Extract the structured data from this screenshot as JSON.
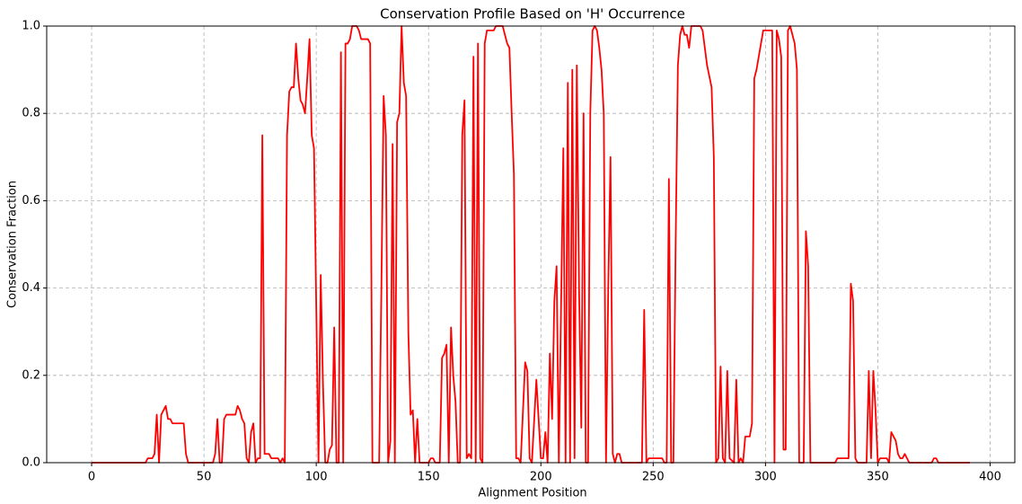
{
  "chart_data": {
    "type": "line",
    "title": "Conservation Profile Based on 'H' Occurrence",
    "x_label": "Alignment Position",
    "y_label": "Conservation Fraction",
    "xlim": [
      -20,
      411
    ],
    "ylim": [
      0,
      1
    ],
    "xticks": [
      0,
      50,
      100,
      150,
      200,
      250,
      300,
      350,
      400
    ],
    "yticks": [
      {
        "value": 0,
        "label": "0.0"
      },
      {
        "value": 0.2,
        "label": "0.2"
      },
      {
        "value": 0.4,
        "label": "0.4"
      },
      {
        "value": 0.6,
        "label": "0.6"
      },
      {
        "value": 0.8,
        "label": "0.8"
      },
      {
        "value": 1,
        "label": "1.0"
      }
    ],
    "grid": true,
    "color": "#ff0000",
    "x": [
      0,
      24,
      25,
      27,
      28,
      29,
      30,
      31,
      33,
      34,
      35,
      36,
      41,
      42,
      43,
      54,
      55,
      56,
      57,
      58,
      59,
      60,
      64,
      65,
      66,
      67,
      68,
      69,
      70,
      71,
      72,
      73,
      74,
      75,
      76,
      77,
      79,
      80,
      83,
      84,
      85,
      86,
      87,
      88,
      89,
      90,
      91,
      92,
      93,
      94,
      95,
      96,
      97,
      98,
      99,
      100,
      101,
      102,
      103,
      104,
      105,
      106,
      107,
      108,
      109,
      110,
      111,
      112,
      113,
      114,
      115,
      116,
      118,
      119,
      120,
      123,
      124,
      125,
      128,
      129,
      130,
      131,
      132,
      133,
      134,
      135,
      136,
      137,
      138,
      139,
      140,
      141,
      142,
      143,
      144,
      145,
      146,
      150,
      151,
      152,
      153,
      155,
      156,
      157,
      158,
      159,
      160,
      161,
      162,
      163,
      164,
      165,
      166,
      167,
      168,
      169,
      170,
      171,
      172,
      173,
      174,
      175,
      176,
      179,
      180,
      183,
      184,
      185,
      186,
      187,
      188,
      189,
      190,
      191,
      193,
      194,
      195,
      196,
      198,
      199,
      200,
      201,
      202,
      203,
      204,
      205,
      206,
      207,
      208,
      210,
      211,
      212,
      213,
      214,
      215,
      216,
      217,
      218,
      219,
      220,
      221,
      222,
      223,
      224,
      225,
      226,
      227,
      228,
      229,
      230,
      231,
      232,
      233,
      234,
      235,
      236,
      245,
      246,
      247,
      248,
      254,
      255,
      256,
      257,
      258,
      259,
      260,
      261,
      262,
      263,
      264,
      265,
      266,
      267,
      271,
      272,
      274,
      276,
      277,
      278,
      279,
      280,
      281,
      282,
      283,
      284,
      286,
      287,
      288,
      289,
      290,
      291,
      293,
      294,
      295,
      296,
      298,
      299,
      303,
      304,
      305,
      306,
      307,
      308,
      309,
      310,
      311,
      312,
      313,
      314,
      315,
      317,
      318,
      319,
      320,
      331,
      332,
      337,
      338,
      339,
      340,
      341,
      345,
      346,
      347,
      348,
      349,
      350,
      351,
      354,
      355,
      356,
      357,
      358,
      359,
      360,
      361,
      362,
      363,
      364,
      374,
      375,
      376,
      377,
      391
    ],
    "values": [
      0,
      0,
      0.01,
      0.01,
      0.02,
      0.11,
      0,
      0.11,
      0.13,
      0.1,
      0.1,
      0.09,
      0.09,
      0.02,
      0,
      0,
      0.02,
      0.1,
      0,
      0,
      0.1,
      0.11,
      0.11,
      0.13,
      0.12,
      0.1,
      0.09,
      0.01,
      0,
      0.07,
      0.09,
      0,
      0.01,
      0.01,
      0.75,
      0.02,
      0.02,
      0.01,
      0.01,
      0,
      0.01,
      0,
      0.75,
      0.85,
      0.86,
      0.86,
      0.96,
      0.88,
      0.83,
      0.82,
      0.8,
      0.88,
      0.97,
      0.75,
      0.72,
      0.36,
      0,
      0.43,
      0.18,
      0,
      0,
      0.03,
      0.04,
      0.31,
      0,
      0,
      0.94,
      0,
      0.96,
      0.96,
      0.97,
      1,
      1,
      0.99,
      0.97,
      0.97,
      0.96,
      0,
      0,
      0.4,
      0.84,
      0.75,
      0,
      0.05,
      0.73,
      0,
      0.78,
      0.8,
      1,
      0.87,
      0.84,
      0.3,
      0.11,
      0.12,
      0,
      0.1,
      0,
      0,
      0.01,
      0.01,
      0,
      0,
      0.24,
      0.25,
      0.27,
      0,
      0.31,
      0.2,
      0.14,
      0,
      0,
      0.75,
      0.83,
      0.01,
      0.02,
      0.01,
      0.93,
      0,
      0.96,
      0.01,
      0,
      0.96,
      0.99,
      0.99,
      1,
      1,
      0.98,
      0.96,
      0.95,
      0.8,
      0.66,
      0.01,
      0.01,
      0,
      0.23,
      0.21,
      0.01,
      0,
      0.19,
      0.1,
      0.01,
      0.01,
      0.07,
      0,
      0.25,
      0.1,
      0.37,
      0.45,
      0,
      0.72,
      0,
      0.87,
      0,
      0.9,
      0.01,
      0.91,
      0.4,
      0.08,
      0.8,
      0,
      0,
      0.8,
      0.99,
      1,
      0.99,
      0.95,
      0.9,
      0.8,
      0,
      0.4,
      0.7,
      0.02,
      0,
      0.02,
      0.02,
      0,
      0,
      0.35,
      0,
      0.01,
      0.01,
      0,
      0,
      0.65,
      0,
      0,
      0.5,
      0.91,
      0.98,
      1,
      0.98,
      0.98,
      0.95,
      1,
      1,
      0.99,
      0.91,
      0.86,
      0.7,
      0,
      0.01,
      0.22,
      0.01,
      0,
      0.21,
      0.01,
      0,
      0.19,
      0,
      0.01,
      0,
      0.06,
      0.06,
      0.09,
      0.88,
      0.9,
      0.96,
      0.99,
      0.99,
      0,
      0.99,
      0.97,
      0.93,
      0.03,
      0.03,
      0.99,
      1,
      0.98,
      0.96,
      0.9,
      0,
      0,
      0.53,
      0.45,
      0,
      0,
      0.01,
      0.01,
      0.41,
      0.37,
      0.01,
      0,
      0,
      0.21,
      0.01,
      0.21,
      0.12,
      0,
      0.01,
      0.01,
      0,
      0.07,
      0.06,
      0.05,
      0.02,
      0.01,
      0.01,
      0.02,
      0.01,
      0,
      0,
      0.01,
      0.01,
      0,
      0
    ]
  }
}
